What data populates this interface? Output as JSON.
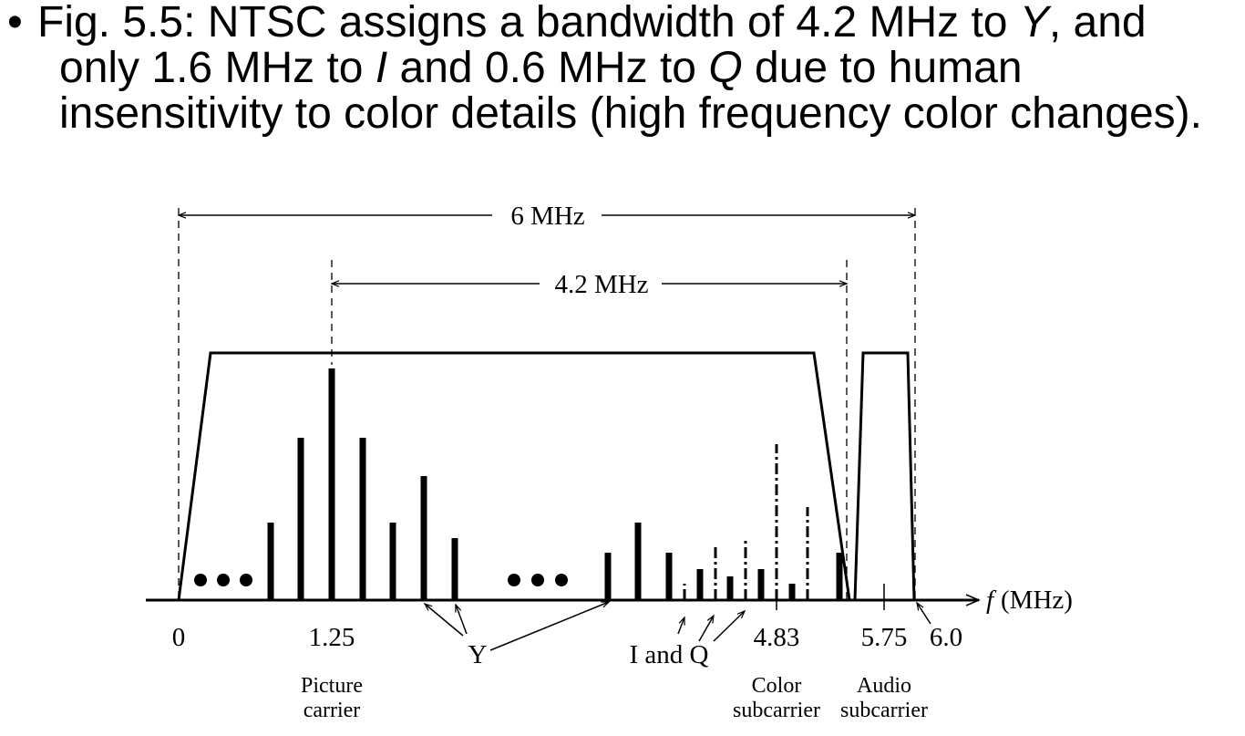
{
  "slide": {
    "bullet_char": "•",
    "line1": [
      {
        "text": "Fig. 5.5: NTSC assigns a bandwidth of 4.2 MHz to ",
        "italic": false
      },
      {
        "text": "Y",
        "italic": true
      },
      {
        "text": ", and",
        "italic": false
      }
    ],
    "line2": [
      {
        "text": "only 1.6 MHz to ",
        "italic": false
      },
      {
        "text": "I",
        "italic": true
      },
      {
        "text": " and 0.6 MHz to ",
        "italic": false
      },
      {
        "text": "Q",
        "italic": true
      },
      {
        "text": " due to human",
        "italic": false
      }
    ],
    "line3": [
      {
        "text": "insensitivity to color details (high frequency color changes).",
        "italic": false
      }
    ]
  },
  "figure": {
    "bandwidth_total": "6 MHz",
    "bandwidth_luma": "4.2 MHz",
    "axis_symbol": "f",
    "axis_unit": "(MHz)",
    "ticks": {
      "zero": "0",
      "picture": "1.25",
      "color": "4.83",
      "audio": "5.75",
      "end": "6.0"
    },
    "labels": {
      "y": "Y",
      "iq": "I and Q",
      "picture_carrier_1": "Picture",
      "picture_carrier_2": "carrier",
      "color_subcarrier_1": "Color",
      "color_subcarrier_2": "subcarrier",
      "audio_subcarrier_1": "Audio",
      "audio_subcarrier_2": "subcarrier"
    }
  }
}
